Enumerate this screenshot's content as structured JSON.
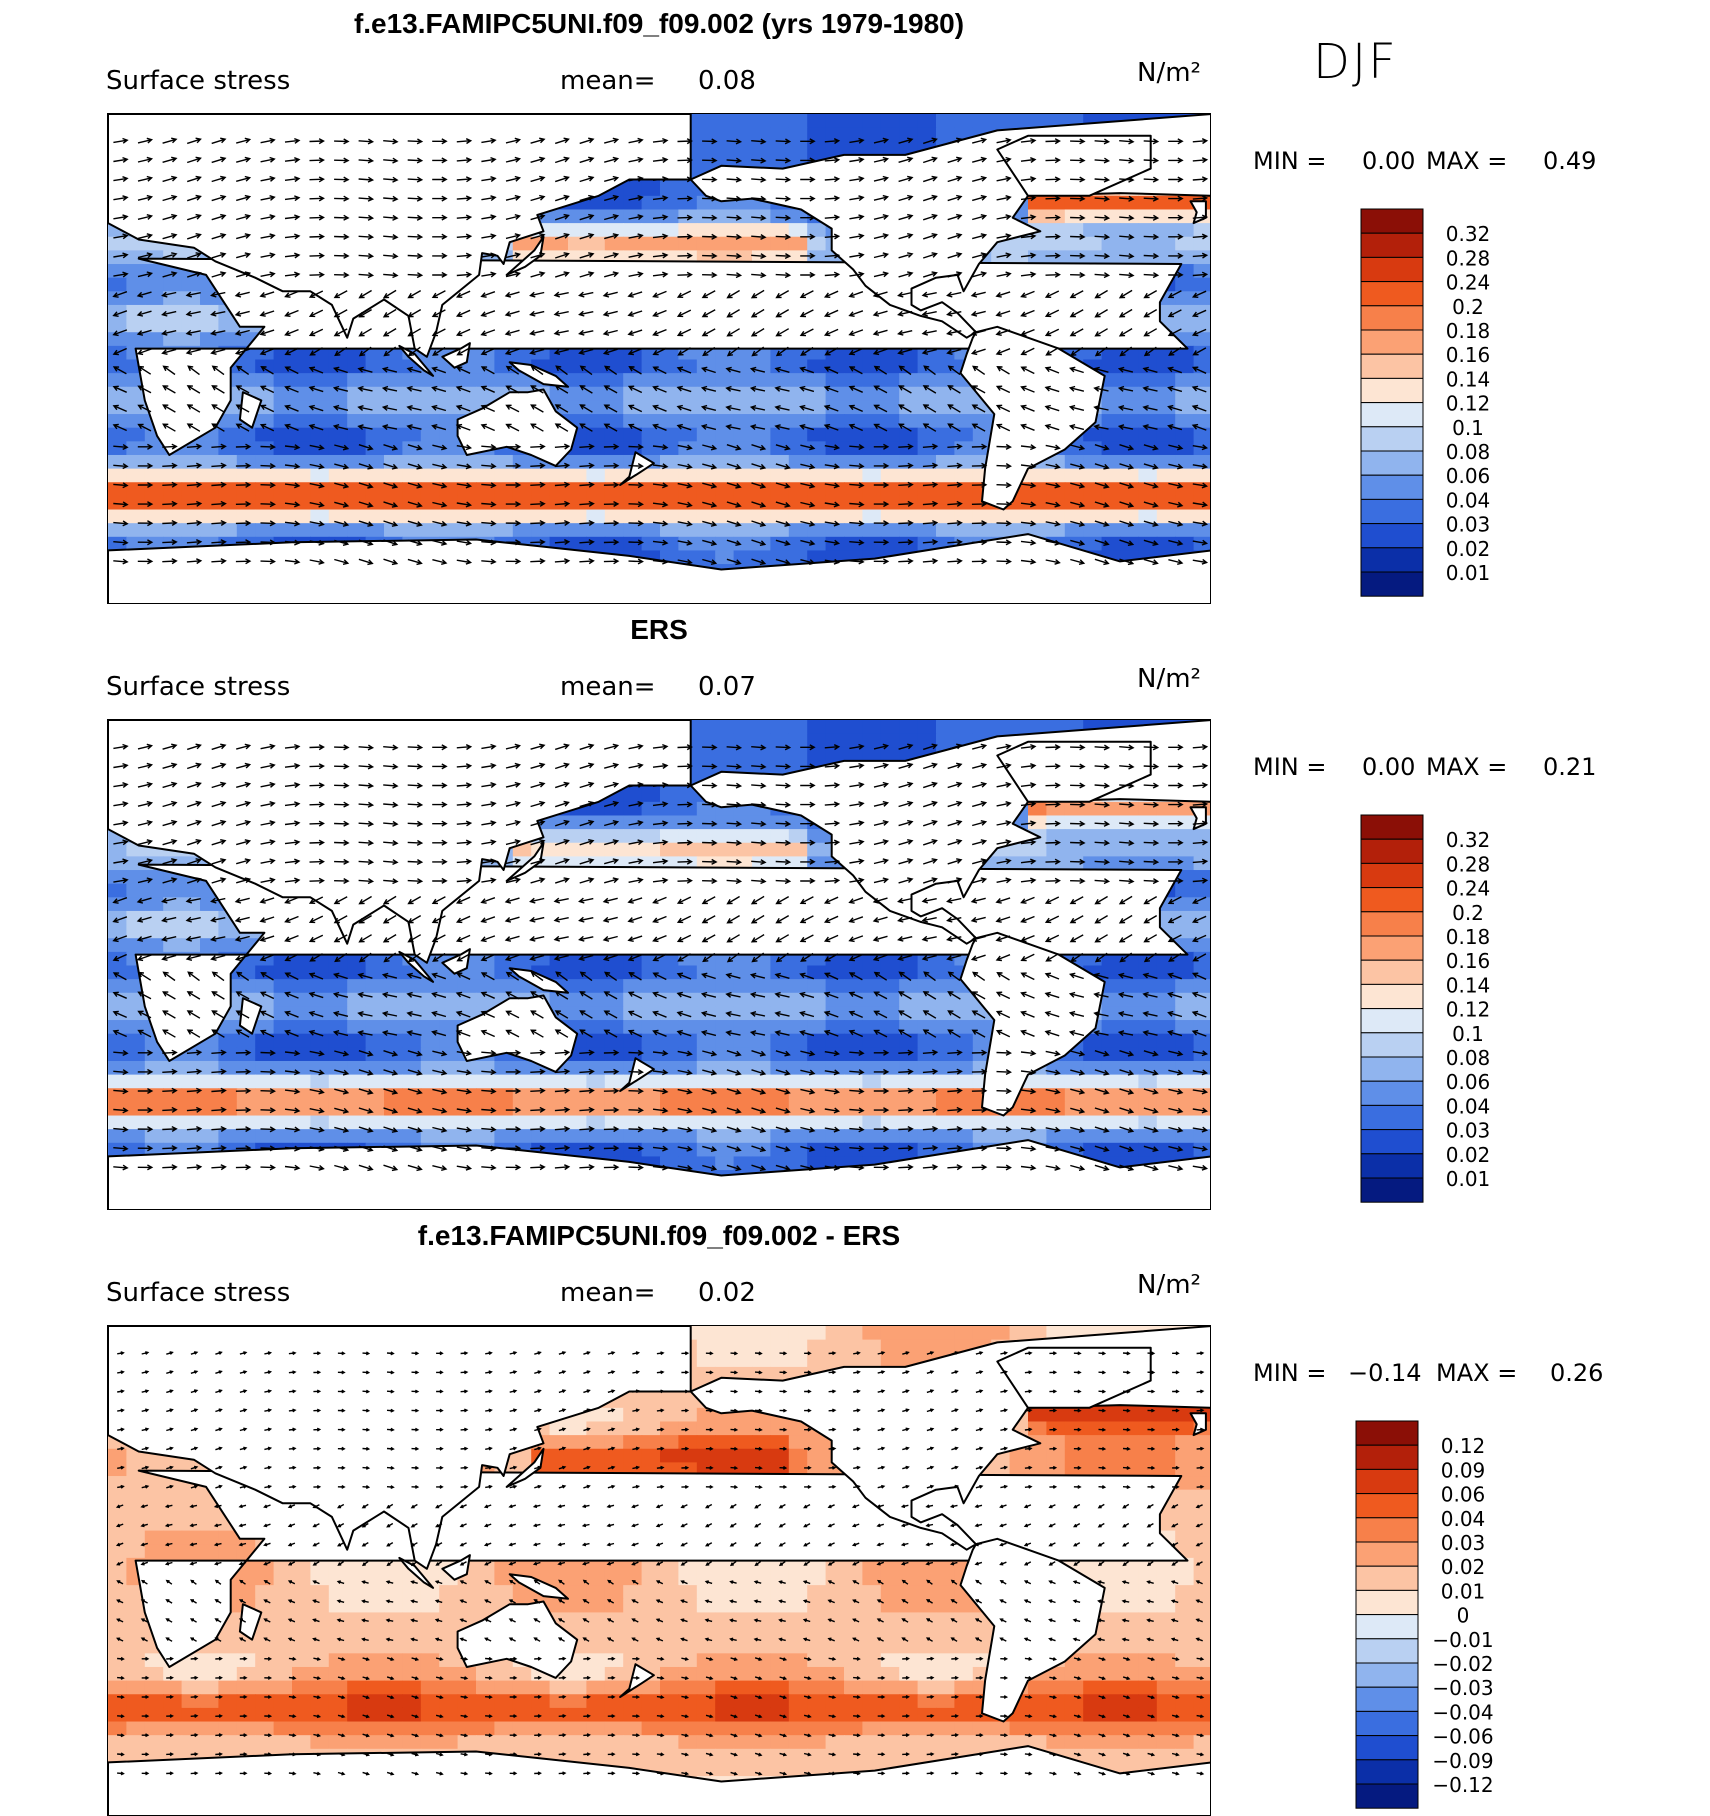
{
  "season": "DJF",
  "panels": [
    {
      "title": "f.e13.FAMIPC5UNI.f09_f09.002 (yrs 1979-1980)",
      "variable": "Surface stress",
      "mean_label": "mean=",
      "mean_value": "0.08",
      "units": "N/m²",
      "min_label": "MIN =",
      "min_value": "0.00",
      "max_label": "MAX =",
      "max_value": "0.49",
      "colorbar": {
        "labels": [
          "0.32",
          "0.28",
          "0.24",
          "0.2",
          "0.18",
          "0.16",
          "0.14",
          "0.12",
          "0.1",
          "0.08",
          "0.06",
          "0.04",
          "0.03",
          "0.02",
          "0.01"
        ],
        "colors": [
          "#8b0f06",
          "#b3200a",
          "#d83a10",
          "#ef5a1f",
          "#f7804a",
          "#fba174",
          "#fcc4a4",
          "#fde5d3",
          "#dde9f7",
          "#b9d0f2",
          "#90b4ee",
          "#5f8fe8",
          "#3a6ee0",
          "#1f4ed0",
          "#0b2fa8",
          "#051a80"
        ]
      }
    },
    {
      "title": "ERS",
      "variable": "Surface stress",
      "mean_label": "mean=",
      "mean_value": "0.07",
      "units": "N/m²",
      "min_label": "MIN =",
      "min_value": "0.00",
      "max_label": "MAX =",
      "max_value": "0.21",
      "colorbar": {
        "labels": [
          "0.32",
          "0.28",
          "0.24",
          "0.2",
          "0.18",
          "0.16",
          "0.14",
          "0.12",
          "0.1",
          "0.08",
          "0.06",
          "0.04",
          "0.03",
          "0.02",
          "0.01"
        ],
        "colors": [
          "#8b0f06",
          "#b3200a",
          "#d83a10",
          "#ef5a1f",
          "#f7804a",
          "#fba174",
          "#fcc4a4",
          "#fde5d3",
          "#dde9f7",
          "#b9d0f2",
          "#90b4ee",
          "#5f8fe8",
          "#3a6ee0",
          "#1f4ed0",
          "#0b2fa8",
          "#051a80"
        ]
      }
    },
    {
      "title": "f.e13.FAMIPC5UNI.f09_f09.002 - ERS",
      "variable": "Surface stress",
      "mean_label": "mean=",
      "mean_value": "0.02",
      "units": "N/m²",
      "min_label": "MIN =",
      "min_value": "−0.14",
      "max_label": "MAX =",
      "max_value": "0.26",
      "colorbar": {
        "labels": [
          "0.12",
          "0.09",
          "0.06",
          "0.04",
          "0.03",
          "0.02",
          "0.01",
          "0",
          "−0.01",
          "−0.02",
          "−0.03",
          "−0.04",
          "−0.06",
          "−0.09",
          "−0.12"
        ],
        "colors": [
          "#8b0f06",
          "#b3200a",
          "#d83a10",
          "#ef5a1f",
          "#f7804a",
          "#fba174",
          "#fcc4a4",
          "#fde5d3",
          "#dde9f7",
          "#b9d0f2",
          "#90b4ee",
          "#5f8fe8",
          "#3a6ee0",
          "#1f4ed0",
          "#0b2fa8",
          "#051a80"
        ]
      }
    }
  ],
  "chart_data": [
    {
      "type": "heatmap",
      "title": "f.e13.FAMIPC5UNI.f09_f09.002 (yrs 1979-1980)",
      "variable": "Surface stress",
      "units": "N/m²",
      "mean": 0.08,
      "min": 0.0,
      "max": 0.49,
      "levels": [
        0.01,
        0.02,
        0.03,
        0.04,
        0.06,
        0.08,
        0.1,
        0.12,
        0.14,
        0.16,
        0.18,
        0.2,
        0.24,
        0.28,
        0.32
      ]
    },
    {
      "type": "heatmap",
      "title": "ERS",
      "variable": "Surface stress",
      "units": "N/m²",
      "mean": 0.07,
      "min": 0.0,
      "max": 0.21,
      "levels": [
        0.01,
        0.02,
        0.03,
        0.04,
        0.06,
        0.08,
        0.1,
        0.12,
        0.14,
        0.16,
        0.18,
        0.2,
        0.24,
        0.28,
        0.32
      ]
    },
    {
      "type": "heatmap",
      "title": "f.e13.FAMIPC5UNI.f09_f09.002 - ERS",
      "variable": "Surface stress",
      "units": "N/m²",
      "mean": 0.02,
      "min": -0.14,
      "max": 0.26,
      "levels": [
        -0.12,
        -0.09,
        -0.06,
        -0.04,
        -0.03,
        -0.02,
        -0.01,
        0,
        0.01,
        0.02,
        0.03,
        0.04,
        0.06,
        0.09,
        0.12
      ]
    }
  ]
}
